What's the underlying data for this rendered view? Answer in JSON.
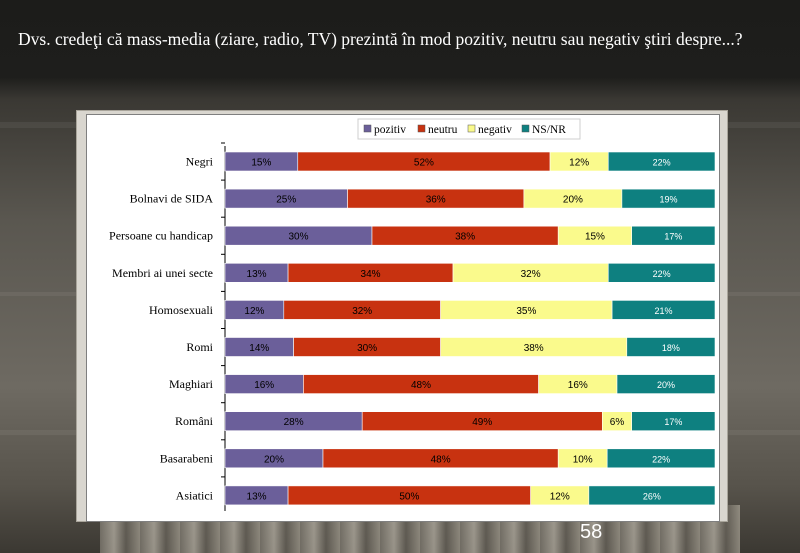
{
  "slide": {
    "title": "Dvs. credeţi că mass-media (ziare, radio, TV) prezintă în mod pozitiv, neutru sau negativ ştiri despre...?",
    "page_number": "58"
  },
  "chart_data": {
    "type": "bar",
    "orientation": "horizontal",
    "stacked": "percent",
    "legend_position": "top",
    "grid": false,
    "categories": [
      "Negri",
      "Bolnavi de SIDA",
      "Persoane cu handicap",
      "Membri ai unei secte",
      "Homosexuali",
      "Romi",
      "Maghiari",
      "Români",
      "Basarabeni",
      "Asiatici"
    ],
    "series": [
      {
        "name": "pozitiv",
        "color": "#6b5f9a",
        "labels": [
          "15%",
          "25%",
          "30%",
          "13%",
          "12%",
          "14%",
          "16%",
          "28%",
          "20%",
          "13%"
        ],
        "values": [
          15,
          25,
          30,
          13,
          12,
          14,
          16,
          28,
          20,
          13
        ]
      },
      {
        "name": "neutru",
        "color": "#c83210",
        "labels": [
          "52%",
          "36%",
          "38%",
          "34%",
          "32%",
          "30%",
          "48%",
          "49%",
          "48%",
          "50%"
        ],
        "values": [
          52,
          36,
          38,
          34,
          32,
          30,
          48,
          49,
          48,
          50
        ]
      },
      {
        "name": "negativ",
        "color": "#fafa8c",
        "labels": [
          "12%",
          "20%",
          "15%",
          "32%",
          "35%",
          "38%",
          "16%",
          "6%",
          "10%",
          "12%"
        ],
        "values": [
          12,
          20,
          15,
          32,
          35,
          38,
          16,
          6,
          10,
          12
        ]
      },
      {
        "name": "NS/NR",
        "color": "#0e8080",
        "labels": [
          "22%",
          "19%",
          "17%",
          "22%",
          "21%",
          "18%",
          "20%",
          "17%",
          "22%",
          "26%"
        ],
        "values": [
          22,
          19,
          17,
          22,
          21,
          18,
          20,
          17,
          22,
          26
        ]
      }
    ]
  }
}
